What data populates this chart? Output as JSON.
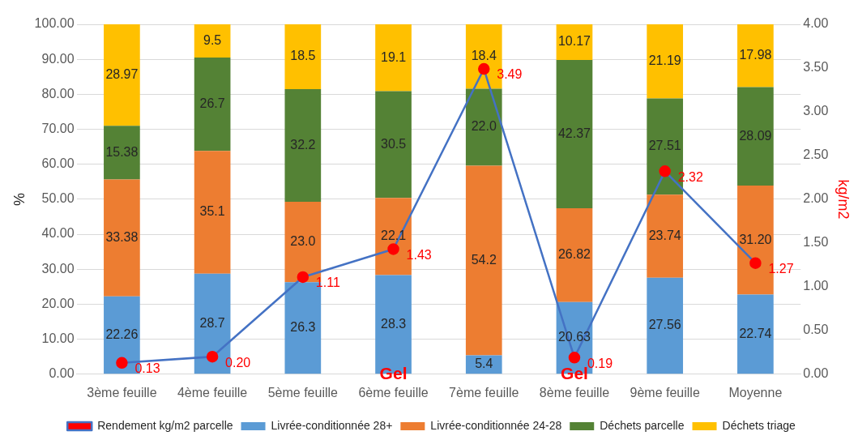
{
  "chart_data": {
    "type": "bar",
    "stacked": true,
    "ylabel": "%",
    "y2label": "kg/m2",
    "categories": [
      "3ème feuille",
      "4ème feuille",
      "5ème feuille",
      "6ème feuille",
      "7ème feuille",
      "8ème feuille",
      "9ème feuille",
      "Moyenne"
    ],
    "series": [
      {
        "name": "Livrée-conditionnée 28+",
        "color": "#5b9bd5",
        "values": [
          22.26,
          28.7,
          26.3,
          28.3,
          5.4,
          20.63,
          27.56,
          22.74
        ],
        "value_labels": [
          "22.26",
          "28.7",
          "26.3",
          "28.3",
          "5.4",
          "20.63",
          "27.56",
          "22.74"
        ]
      },
      {
        "name": "Livrée-conditionnée 24-28",
        "color": "#ed7d31",
        "values": [
          33.38,
          35.1,
          23.0,
          22.1,
          54.2,
          26.82,
          23.74,
          31.2
        ],
        "value_labels": [
          "33.38",
          "35.1",
          "23.0",
          "22.1",
          "54.2",
          "26.82",
          "23.74",
          "31.20"
        ]
      },
      {
        "name": "Déchets parcelle",
        "color": "#548235",
        "values": [
          15.38,
          26.7,
          32.2,
          30.5,
          22.0,
          42.37,
          27.51,
          28.09
        ],
        "value_labels": [
          "15.38",
          "26.7",
          "32.2",
          "30.5",
          "22.0",
          "42.37",
          "27.51",
          "28.09"
        ]
      },
      {
        "name": "Déchets triage",
        "color": "#ffc000",
        "values": [
          28.97,
          9.5,
          18.5,
          19.1,
          18.4,
          10.17,
          21.19,
          17.98
        ],
        "value_labels": [
          "28.97",
          "9.5",
          "18.5",
          "19.1",
          "18.4",
          "10.17",
          "21.19",
          "17.98"
        ]
      },
      {
        "name": "Rendement kg/m2 parcelle",
        "type": "line",
        "axis": "y2",
        "color": "#4472c4",
        "colors": [
          "#ff0000",
          "#ff0000",
          "#ff0000",
          "#ff0000",
          "#ff0000",
          "#ff0000",
          "#ff0000",
          "#ff0000"
        ],
        "marker": "circle",
        "values": [
          0.13,
          0.2,
          1.11,
          1.43,
          3.49,
          0.19,
          2.32,
          1.27
        ],
        "value_labels": [
          "0.13",
          "0.20",
          "1.11",
          "1.43",
          "3.49",
          "0.19",
          "2.32",
          "1.27"
        ]
      }
    ],
    "ylim": [
      0,
      100
    ],
    "yticks": [
      {
        "value": 0,
        "label": "0.00"
      },
      {
        "value": 10,
        "label": "10.00"
      },
      {
        "value": 20,
        "label": "20.00"
      },
      {
        "value": 30,
        "label": "30.00"
      },
      {
        "value": 40,
        "label": "40.00"
      },
      {
        "value": 50,
        "label": "50.00"
      },
      {
        "value": 60,
        "label": "60.00"
      },
      {
        "value": 70,
        "label": "70.00"
      },
      {
        "value": 80,
        "label": "80.00"
      },
      {
        "value": 90,
        "label": "90.00"
      },
      {
        "value": 100,
        "label": "100.00"
      }
    ],
    "y2lim": [
      0,
      4
    ],
    "y2ticks": [
      {
        "value": 0,
        "label": "0.00"
      },
      {
        "value": 0.5,
        "label": "0.50"
      },
      {
        "value": 1,
        "label": "1.00"
      },
      {
        "value": 1.5,
        "label": "1.50"
      },
      {
        "value": 2,
        "label": "2.00"
      },
      {
        "value": 2.5,
        "label": "2.50"
      },
      {
        "value": 3,
        "label": "3.00"
      },
      {
        "value": 3.5,
        "label": "3.50"
      },
      {
        "value": 4,
        "label": "4.00"
      }
    ],
    "annotations": [
      {
        "text": "Gel",
        "x": "6ème feuille",
        "y": 0
      },
      {
        "text": "Gel",
        "x": "8ème feuille",
        "y": 0
      }
    ],
    "grid": "y",
    "legend": "bottom"
  }
}
